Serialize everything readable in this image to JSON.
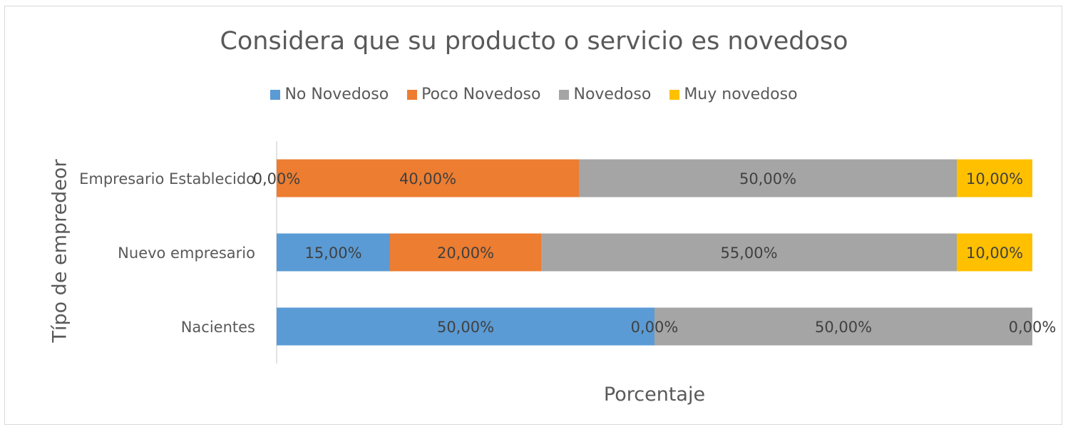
{
  "chart_data": {
    "type": "bar",
    "orientation": "horizontal",
    "stacked": true,
    "title": "Considera que su producto o servicio es novedoso",
    "xlabel": "Porcentaje",
    "ylabel": "Típo de empredeor",
    "xlim": [
      0,
      100
    ],
    "legend_position": "top",
    "grid": false,
    "categories": [
      "Empresario Establecido",
      "Nuevo empresario",
      "Nacientes"
    ],
    "series": [
      {
        "name": "No Novedoso",
        "color": "#5b9bd5",
        "values": [
          0,
          15,
          50
        ],
        "labels": [
          "0,00%",
          "15,00%",
          "50,00%"
        ]
      },
      {
        "name": "Poco Novedoso",
        "color": "#ed7d31",
        "values": [
          40,
          20,
          0
        ],
        "labels": [
          "40,00%",
          "20,00%",
          "0,00%"
        ]
      },
      {
        "name": "Novedoso",
        "color": "#a5a5a5",
        "values": [
          50,
          55,
          50
        ],
        "labels": [
          "50,00%",
          "55,00%",
          "50,00%"
        ]
      },
      {
        "name": "Muy novedoso",
        "color": "#ffc000",
        "values": [
          10,
          10,
          0
        ],
        "labels": [
          "10,00%",
          "10,00%",
          "0,00%"
        ]
      }
    ]
  }
}
